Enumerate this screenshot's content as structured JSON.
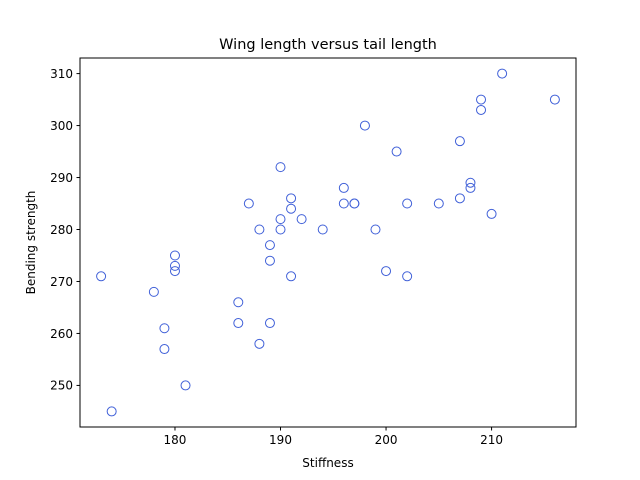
{
  "chart_data": {
    "type": "scatter",
    "title": "Wing length versus tail length",
    "xlabel": "Stiffness",
    "ylabel": "Bending strength",
    "xlim": [
      171,
      218
    ],
    "ylim": [
      242,
      313
    ],
    "xticks": [
      180,
      190,
      200,
      210
    ],
    "yticks": [
      250,
      260,
      270,
      280,
      290,
      300,
      310
    ],
    "grid": false,
    "marker": "hollow-circle",
    "marker_color": "#4060d8",
    "series": [
      {
        "points": [
          [
            173,
            271
          ],
          [
            174,
            245
          ],
          [
            178,
            268
          ],
          [
            179,
            261
          ],
          [
            179,
            257
          ],
          [
            180,
            275
          ],
          [
            180,
            273
          ],
          [
            180,
            272
          ],
          [
            181,
            250
          ],
          [
            186,
            266
          ],
          [
            186,
            262
          ],
          [
            187,
            285
          ],
          [
            188,
            280
          ],
          [
            188,
            258
          ],
          [
            189,
            277
          ],
          [
            189,
            274
          ],
          [
            189,
            262
          ],
          [
            190,
            292
          ],
          [
            190,
            282
          ],
          [
            190,
            280
          ],
          [
            191,
            286
          ],
          [
            191,
            284
          ],
          [
            191,
            271
          ],
          [
            192,
            282
          ],
          [
            194,
            280
          ],
          [
            196,
            288
          ],
          [
            196,
            285
          ],
          [
            197,
            285
          ],
          [
            197,
            285
          ],
          [
            198,
            300
          ],
          [
            199,
            280
          ],
          [
            200,
            272
          ],
          [
            201,
            295
          ],
          [
            202,
            285
          ],
          [
            202,
            271
          ],
          [
            205,
            285
          ],
          [
            207,
            297
          ],
          [
            207,
            286
          ],
          [
            208,
            289
          ],
          [
            208,
            288
          ],
          [
            209,
            305
          ],
          [
            209,
            303
          ],
          [
            210,
            283
          ],
          [
            211,
            310
          ],
          [
            216,
            305
          ]
        ]
      }
    ]
  }
}
